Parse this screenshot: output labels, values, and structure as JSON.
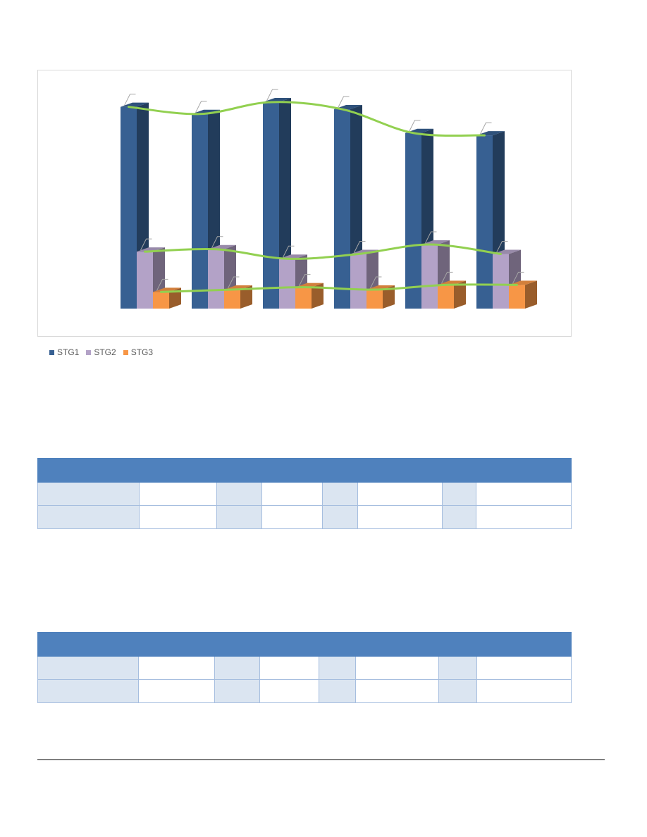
{
  "chart_data": {
    "type": "bar",
    "title": "",
    "xlabel": "",
    "ylabel": "",
    "categories": [
      "",
      "",
      "",
      "",
      "",
      ""
    ],
    "series": [
      {
        "name": "STG1",
        "values": [
          85,
          82,
          87,
          84,
          74,
          73
        ],
        "color": "#376092"
      },
      {
        "name": "STG2",
        "values": [
          24,
          25,
          21,
          23,
          27,
          23
        ],
        "color": "#b3a2c7"
      },
      {
        "name": "STG3",
        "values": [
          7,
          8,
          9,
          8,
          10,
          10
        ],
        "color": "#f79646"
      }
    ],
    "trendline_color": "#92d050",
    "ylim": [
      0,
      95
    ],
    "grid": false,
    "legend": "bottom-left",
    "style": "3d-column"
  },
  "legend": {
    "items": [
      {
        "label": "STG1",
        "color": "#376092"
      },
      {
        "label": "STG2",
        "color": "#b3a2c7"
      },
      {
        "label": "STG3",
        "color": "#f79646"
      }
    ]
  },
  "tables": [
    {
      "rows": [
        [
          "",
          "",
          "",
          "",
          "",
          "",
          "",
          ""
        ],
        [
          "",
          "",
          "",
          "",
          "",
          "",
          "",
          ""
        ]
      ]
    },
    {
      "rows": [
        [
          "",
          "",
          "",
          "",
          "",
          "",
          "",
          ""
        ],
        [
          "",
          "",
          "",
          "",
          "",
          "",
          "",
          ""
        ]
      ]
    }
  ]
}
